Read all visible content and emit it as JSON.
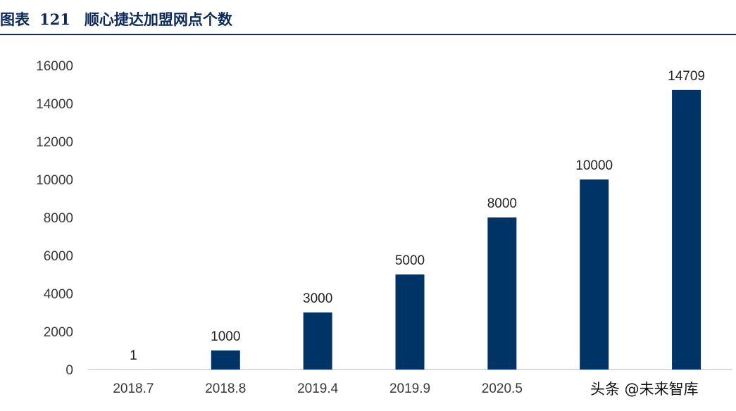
{
  "caption": {
    "prefix": "图表",
    "number": "121",
    "title": "顺心捷达加盟网点个数"
  },
  "watermark": "头条 @未来智库",
  "colors": {
    "bar": "#003366",
    "title": "#0b2a5b"
  },
  "chart_data": {
    "type": "bar",
    "categories": [
      "2018.7",
      "2018.8",
      "2019.4",
      "2019.9",
      "2020.5",
      "",
      ""
    ],
    "values": [
      1,
      1000,
      3000,
      5000,
      8000,
      10000,
      14709
    ],
    "data_labels": [
      "1",
      "1000",
      "3000",
      "5000",
      "8000",
      "10000",
      "14709"
    ],
    "yticks": [
      0,
      2000,
      4000,
      6000,
      8000,
      10000,
      12000,
      14000,
      16000
    ],
    "ylim": [
      0,
      16000
    ],
    "title": "",
    "xlabel": "",
    "ylabel": "",
    "grid": false,
    "legend": "none"
  }
}
